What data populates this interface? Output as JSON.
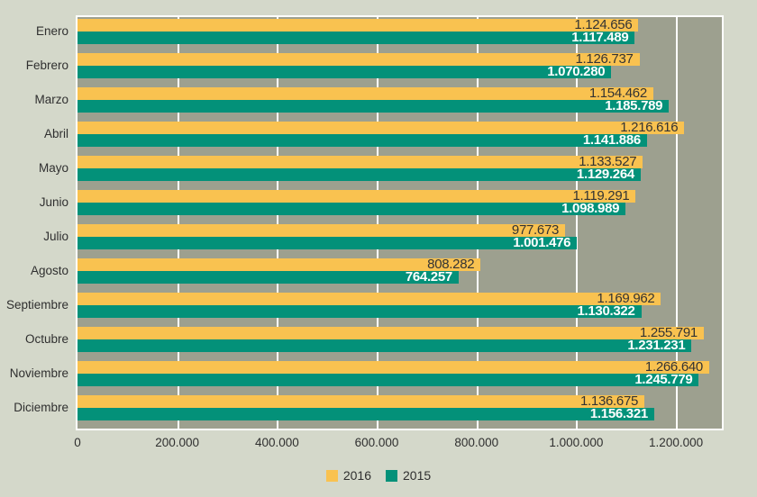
{
  "chart_data": {
    "type": "bar",
    "orientation": "horizontal",
    "title": "",
    "categories": [
      "Enero",
      "Febrero",
      "Marzo",
      "Abril",
      "Mayo",
      "Junio",
      "Julio",
      "Agosto",
      "Septiembre",
      "Octubre",
      "Noviembre",
      "Diciembre"
    ],
    "series": [
      {
        "name": "2016",
        "color": "#f9c250",
        "values": [
          1124656,
          1126737,
          1154462,
          1216616,
          1133527,
          1119291,
          977673,
          808282,
          1169962,
          1255791,
          1266640,
          1136675
        ],
        "display_values": [
          "1.124.656",
          "1.126.737",
          "1.154.462",
          "1.216.616",
          "1.133.527",
          "1.119.291",
          "977.673",
          "808.282",
          "1.169.962",
          "1.255.791",
          "1.266.640",
          "1.136.675"
        ]
      },
      {
        "name": "2015",
        "color": "#039179",
        "values": [
          1117489,
          1070280,
          1185789,
          1141886,
          1129264,
          1098989,
          1001476,
          764257,
          1130322,
          1231231,
          1245779,
          1156321
        ],
        "display_values": [
          "1.117.489",
          "1.070.280",
          "1.185.789",
          "1.141.886",
          "1.129.264",
          "1.098.989",
          "1.001.476",
          "764.257",
          "1.130.322",
          "1.231.231",
          "1.245.779",
          "1.156.321"
        ]
      }
    ],
    "x_axis": {
      "tick_values": [
        0,
        200000,
        400000,
        600000,
        800000,
        1000000,
        1200000
      ],
      "tick_labels": [
        "0",
        "200.000",
        "400.000",
        "600.000",
        "800.000",
        "1.000.000",
        "1.200.000"
      ],
      "max": 1292000
    },
    "grid": true,
    "legend_position": "bottom"
  },
  "colors": {
    "background": "#d4d8ca",
    "plot_background": "#9da08f",
    "gridline": "#ffffff",
    "label_on_2016": "#333333",
    "label_on_2015": "#ffffff",
    "axis_text": "#2f2f2f"
  }
}
